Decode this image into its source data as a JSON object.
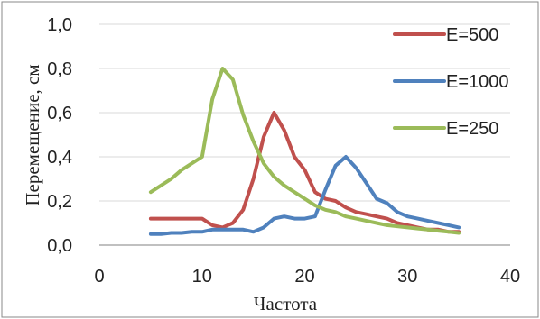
{
  "chart_data": {
    "type": "line",
    "title": "",
    "xlabel": "Частота",
    "ylabel": "Перемещение, см",
    "xlim": [
      0,
      40
    ],
    "ylim": [
      0,
      1.0
    ],
    "x_ticks": [
      0,
      10,
      20,
      30,
      40
    ],
    "x_tick_labels": [
      "0",
      "10",
      "20",
      "30",
      "40"
    ],
    "y_ticks": [
      0,
      0.2,
      0.4,
      0.6,
      0.8,
      1.0
    ],
    "y_tick_labels": [
      "0,0",
      "0,2",
      "0,4",
      "0,6",
      "0,8",
      "1,0"
    ],
    "grid": {
      "horizontal": true,
      "vertical": false
    },
    "legend": "top-right",
    "series": [
      {
        "name": "E=500",
        "color": "#c0504d",
        "x": [
          5,
          6,
          7,
          8,
          9,
          10,
          11,
          12,
          13,
          14,
          15,
          16,
          17,
          18,
          19,
          20,
          21,
          22,
          23,
          24,
          25,
          26,
          27,
          28,
          29,
          30,
          31,
          32,
          33,
          34,
          35
        ],
        "y": [
          0.12,
          0.12,
          0.12,
          0.12,
          0.12,
          0.12,
          0.09,
          0.08,
          0.1,
          0.16,
          0.3,
          0.49,
          0.6,
          0.52,
          0.4,
          0.34,
          0.24,
          0.21,
          0.2,
          0.17,
          0.15,
          0.14,
          0.13,
          0.12,
          0.1,
          0.09,
          0.08,
          0.07,
          0.07,
          0.06,
          0.06
        ]
      },
      {
        "name": "E=1000",
        "color": "#4f81bd",
        "x": [
          5,
          6,
          7,
          8,
          9,
          10,
          11,
          12,
          13,
          14,
          15,
          16,
          17,
          18,
          19,
          20,
          21,
          22,
          23,
          24,
          25,
          26,
          27,
          28,
          29,
          30,
          31,
          32,
          33,
          34,
          35
        ],
        "y": [
          0.05,
          0.05,
          0.055,
          0.055,
          0.06,
          0.06,
          0.07,
          0.07,
          0.07,
          0.07,
          0.06,
          0.08,
          0.12,
          0.13,
          0.12,
          0.12,
          0.13,
          0.25,
          0.36,
          0.4,
          0.35,
          0.28,
          0.21,
          0.19,
          0.15,
          0.13,
          0.12,
          0.11,
          0.1,
          0.09,
          0.08
        ]
      },
      {
        "name": "E=250",
        "color": "#9bbb59",
        "x": [
          5,
          6,
          7,
          8,
          9,
          10,
          11,
          12,
          13,
          14,
          15,
          16,
          17,
          18,
          19,
          20,
          21,
          22,
          23,
          24,
          25,
          26,
          27,
          28,
          29,
          30,
          31,
          32,
          33,
          34,
          35
        ],
        "y": [
          0.24,
          0.27,
          0.3,
          0.34,
          0.37,
          0.4,
          0.66,
          0.8,
          0.75,
          0.59,
          0.47,
          0.37,
          0.31,
          0.27,
          0.24,
          0.21,
          0.18,
          0.16,
          0.15,
          0.13,
          0.12,
          0.11,
          0.1,
          0.09,
          0.085,
          0.08,
          0.075,
          0.07,
          0.065,
          0.06,
          0.055
        ]
      }
    ]
  }
}
